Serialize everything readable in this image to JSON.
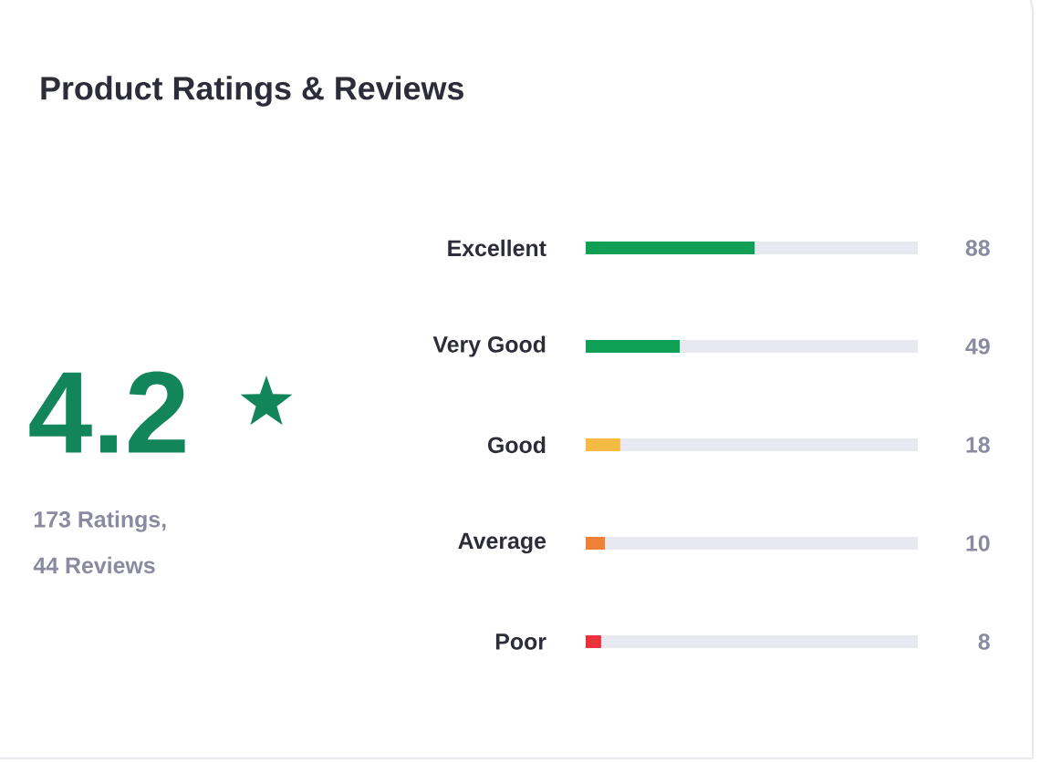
{
  "chart_data": {
    "type": "bar",
    "orientation": "horizontal",
    "title": "Product Ratings & Reviews",
    "categories": [
      "Excellent",
      "Very Good",
      "Good",
      "Average",
      "Poor"
    ],
    "values": [
      88,
      49,
      18,
      10,
      8
    ],
    "colors": [
      "#0fa055",
      "#0fa055",
      "#f5b944",
      "#f08038",
      "#e8323c"
    ],
    "xlim": [
      0,
      173
    ],
    "data_labels": true,
    "tick_labels": "y",
    "annotations": [
      "4.2",
      "173  Ratings,",
      "44  Reviews"
    ]
  }
}
